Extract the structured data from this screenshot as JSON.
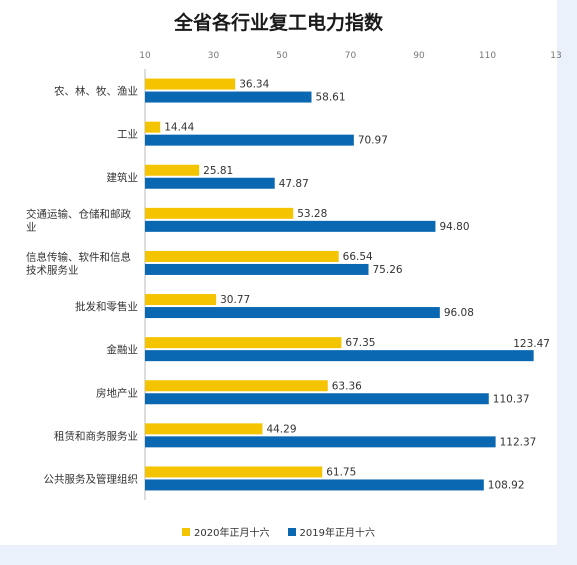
{
  "colors": {
    "series_2020": "#f5c400",
    "series_2019": "#0a68b3",
    "axis": "#bbbbbb",
    "text": "#333333",
    "background": "#eaf1fa"
  },
  "chart_data": {
    "type": "bar",
    "orientation": "horizontal",
    "title": "全省各行业复工电力指数",
    "xlabel": "",
    "ylabel": "",
    "xlim": [
      10,
      130
    ],
    "x_ticks": [
      "10",
      "30",
      "50",
      "70",
      "90",
      "110",
      "13"
    ],
    "grid": false,
    "legend": "bottom",
    "categories": [
      [
        "农、林、牧、渔业"
      ],
      [
        "工业"
      ],
      [
        "建筑业"
      ],
      [
        "交通运输、仓储和邮政",
        "业"
      ],
      [
        "信息传输、软件和信息",
        "技术服务业"
      ],
      [
        "批发和零售业"
      ],
      [
        "金融业"
      ],
      [
        "房地产业"
      ],
      [
        "租赁和商务服务业"
      ],
      [
        "公共服务及管理组织"
      ]
    ],
    "series": [
      {
        "name": "2020年正月十六",
        "labels": [
          "36.34",
          "14.44",
          "25.81",
          "53.28",
          "66.54",
          "30.77",
          "67.35",
          "63.36",
          "44.29",
          "61.75"
        ],
        "values": [
          36.34,
          14.44,
          25.81,
          53.28,
          66.54,
          30.77,
          67.35,
          63.36,
          44.29,
          61.75
        ]
      },
      {
        "name": "2019年正月十六",
        "labels": [
          "58.61",
          "70.97",
          "47.87",
          "94.80",
          "75.26",
          "96.08",
          "123.47",
          "110.37",
          "112.37",
          "108.92"
        ],
        "values": [
          58.61,
          70.97,
          47.87,
          94.8,
          75.26,
          96.08,
          123.47,
          110.37,
          112.37,
          108.92
        ]
      }
    ]
  }
}
